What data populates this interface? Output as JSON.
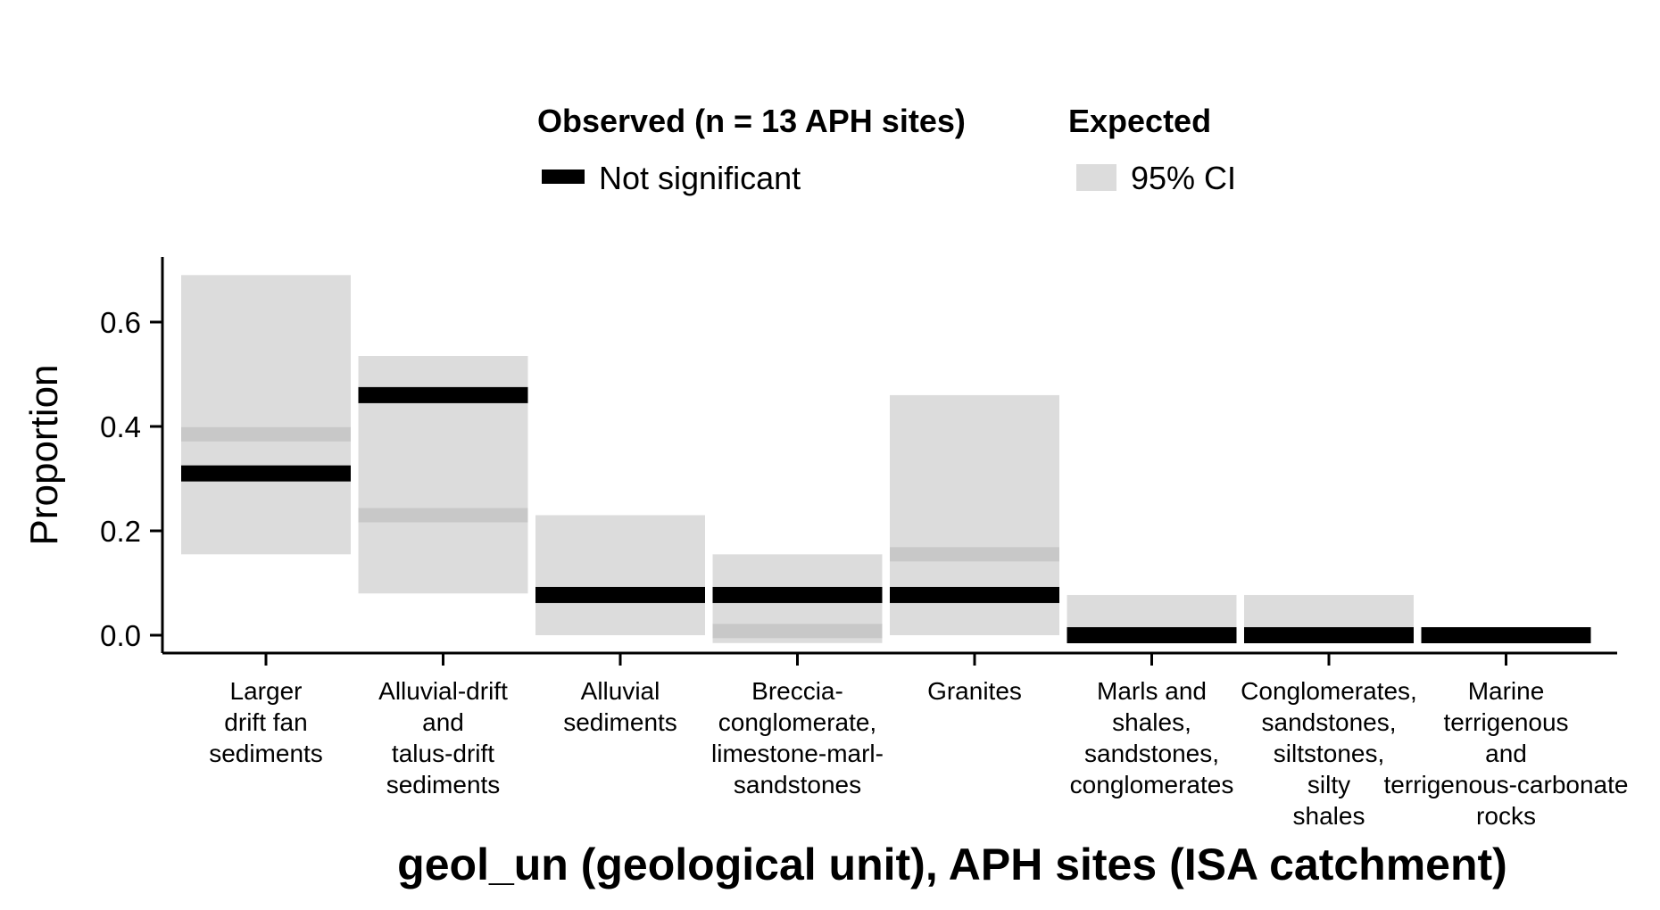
{
  "legend": {
    "observed_title": "Observed (n = 13 APH sites)",
    "observed_item": "Not significant",
    "expected_title": "Expected",
    "expected_item": "95% CI"
  },
  "colors": {
    "observed": "#000000",
    "ci_band": "#dcdcdc",
    "expected_mean": "#c8c8c8"
  },
  "chart_data": {
    "type": "bar",
    "title": "",
    "xlabel": "geol_un (geological unit), APH sites (ISA catchment)",
    "ylabel": "Proportion",
    "ylim": [
      -0.03,
      0.72
    ],
    "yticks": [
      "0.0",
      "0.2",
      "0.4",
      "0.6"
    ],
    "ytick_values": [
      0.0,
      0.2,
      0.4,
      0.6
    ],
    "grid": false,
    "legend_position": "top",
    "categories": [
      [
        "Larger",
        "drift fan",
        "sediments"
      ],
      [
        "Alluvial-drift",
        "and",
        "talus-drift",
        "sediments"
      ],
      [
        "Alluvial",
        "sediments"
      ],
      [
        "Breccia-",
        "conglomerate,",
        "limestone-marl-",
        "sandstones"
      ],
      [
        "Granites"
      ],
      [
        "Marls and",
        "shales,",
        "sandstones,",
        "conglomerates"
      ],
      [
        "Conglomerates,",
        "sandstones,",
        "siltstones,",
        "silty",
        "shales"
      ],
      [
        "Marine",
        "terrigenous",
        "and",
        "terrigenous-carbonate",
        "rocks"
      ]
    ],
    "series": [
      {
        "name": "Not significant",
        "kind": "observed",
        "values": [
          0.31,
          0.46,
          0.077,
          0.077,
          0.077,
          0.0,
          0.0,
          0.0
        ]
      },
      {
        "name": "95% CI",
        "kind": "ci",
        "lower": [
          0.155,
          0.08,
          0.0,
          -0.015,
          0.0,
          0.0,
          0.0,
          0.0
        ],
        "upper": [
          0.69,
          0.535,
          0.23,
          0.155,
          0.46,
          0.077,
          0.077,
          0.0
        ]
      },
      {
        "kind": "expected_mean",
        "values": [
          0.385,
          0.23,
          null,
          0.008,
          0.155,
          null,
          null,
          null
        ]
      }
    ]
  }
}
